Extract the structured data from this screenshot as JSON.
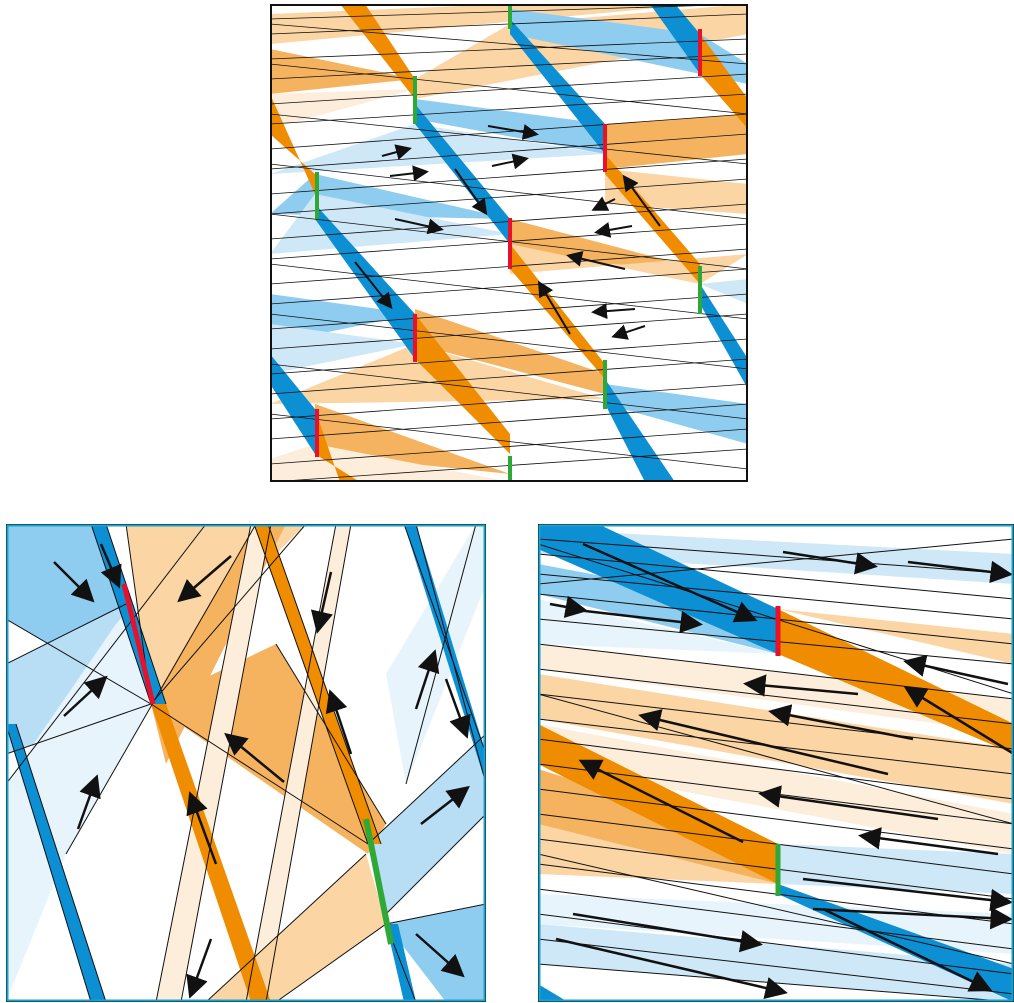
{
  "colors": {
    "blue_dark": "#0d8fd3",
    "blue_mid": "#8fcdf0",
    "blue_light": "#cfe8f7",
    "blue_pale": "#e8f4fc",
    "orange_dark": "#f08c00",
    "orange_mid": "#f6b35f",
    "orange_light": "#fbd5a4",
    "orange_pale": "#fdeddb",
    "seam_red": "#e8102a",
    "seam_green": "#2ea836",
    "line": "#111111",
    "frame": "#111111",
    "frame_teal": "#1aa2cf"
  },
  "panels": [
    {
      "name": "overview-panel",
      "frame": "black"
    },
    {
      "name": "zoom-left-panel",
      "frame": "teal"
    },
    {
      "name": "zoom-right-panel",
      "frame": "teal"
    }
  ]
}
